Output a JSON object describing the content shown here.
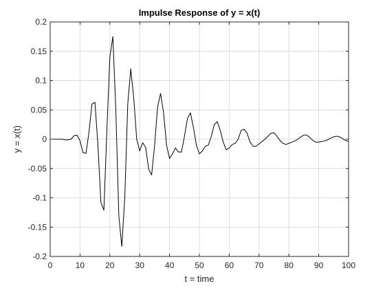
{
  "chart_data": {
    "type": "line",
    "title": "Impulse Response of y = x(t)",
    "xlabel": "t = time",
    "ylabel": "y = x(t)",
    "xlim": [
      0,
      100
    ],
    "ylim": [
      -0.2,
      0.2
    ],
    "xticks": [
      0,
      10,
      20,
      30,
      40,
      50,
      60,
      70,
      80,
      90,
      100
    ],
    "xtick_labels": [
      "0",
      "10",
      "20",
      "30",
      "40",
      "50",
      "60",
      "70",
      "80",
      "90",
      "100"
    ],
    "yticks": [
      -0.2,
      -0.15,
      -0.1,
      -0.05,
      0,
      0.05,
      0.1,
      0.15,
      0.2
    ],
    "ytick_labels": [
      "-0.2",
      "-0.15",
      "-0.1",
      "-0.05",
      "0",
      "0.05",
      "0.1",
      "0.15",
      "0.2"
    ],
    "grid": true,
    "line_color": "#000000",
    "grid_color": "#dcdcdc",
    "axis_color": "#262626",
    "series": [
      {
        "x": [
          0,
          1,
          2,
          3,
          4,
          5,
          6,
          7,
          8,
          9,
          10,
          11,
          12,
          13,
          14,
          15,
          16,
          17,
          18,
          19,
          20,
          21,
          22,
          23,
          24,
          25,
          26,
          27,
          28,
          29,
          30,
          31,
          32,
          33,
          34,
          35,
          36,
          37,
          38,
          39,
          40,
          41,
          42,
          43,
          44,
          45,
          46,
          47,
          48,
          49,
          50,
          51,
          52,
          53,
          54,
          55,
          56,
          57,
          58,
          59,
          60,
          61,
          62,
          63,
          64,
          65,
          66,
          67,
          68,
          69,
          70,
          71,
          72,
          73,
          74,
          75,
          76,
          77,
          78,
          79,
          80,
          81,
          82,
          83,
          84,
          85,
          86,
          87,
          88,
          89,
          90,
          91,
          92,
          93,
          94,
          95,
          96,
          97,
          98,
          99,
          100
        ],
        "y": [
          0,
          0,
          0,
          0,
          0,
          -0.001,
          -0.001,
          0,
          0.006,
          0.007,
          -0.003,
          -0.023,
          -0.024,
          0.012,
          0.06,
          0.063,
          -0.01,
          -0.108,
          -0.121,
          0.015,
          0.14,
          0.175,
          0.05,
          -0.13,
          -0.183,
          -0.1,
          0.06,
          0.12,
          0.07,
          0,
          -0.02,
          -0.006,
          -0.014,
          -0.051,
          -0.061,
          -0.01,
          0.055,
          0.078,
          0.045,
          -0.01,
          -0.033,
          -0.025,
          -0.015,
          -0.022,
          -0.022,
          0.005,
          0.035,
          0.045,
          0.02,
          -0.01,
          -0.025,
          -0.02,
          -0.012,
          -0.01,
          0.005,
          0.025,
          0.03,
          0.015,
          -0.005,
          -0.018,
          -0.015,
          -0.009,
          -0.007,
          0,
          0.015,
          0.017,
          0.01,
          -0.005,
          -0.012,
          -0.012,
          -0.008,
          -0.004,
          0,
          0.005,
          0.01,
          0.011,
          0.005,
          -0.002,
          -0.007,
          -0.009,
          -0.007,
          -0.005,
          -0.003,
          0,
          0.004,
          0.007,
          0.007,
          0.003,
          -0.002,
          -0.005,
          -0.005,
          -0.004,
          -0.003,
          -0.001,
          0.002,
          0.004,
          0.005,
          0.004,
          0.001,
          -0.002,
          -0.004
        ]
      }
    ]
  }
}
